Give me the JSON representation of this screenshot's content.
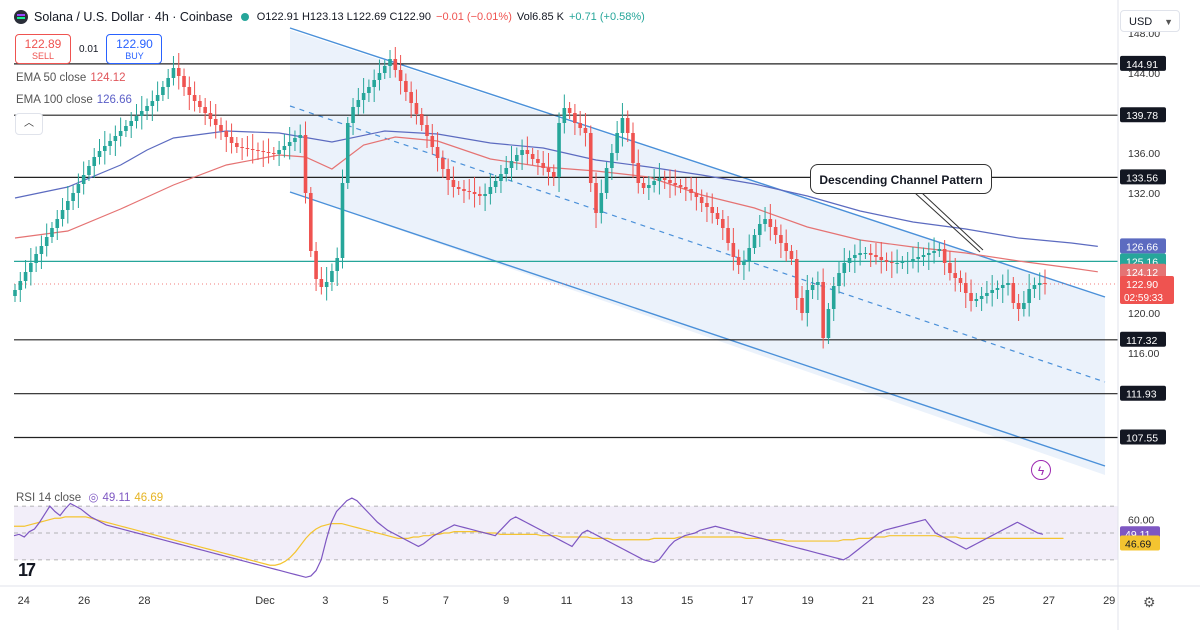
{
  "header": {
    "symbol": "Solana / U.S. Dollar · 4h · Coinbase",
    "ohlc": "O122.91 H123.13 L122.69 C122.90",
    "change": "−0.01 (−0.01%)",
    "volume": "Vol6.85 K",
    "vol_change": "+0.71 (+0.58%)"
  },
  "trade": {
    "sell_price": "122.89",
    "sell_label": "SELL",
    "spread": "0.01",
    "buy_price": "122.90",
    "buy_label": "BUY"
  },
  "indicators": {
    "ema50_label": "EMA 50 close",
    "ema50_value": "124.12",
    "ema100_label": "EMA 100 close",
    "ema100_value": "126.66",
    "rsi_label": "RSI 14 close",
    "rsi_value": "49.11",
    "rsi_ma_value": "46.69"
  },
  "currency": "USD",
  "annotation": "Descending Channel Pattern",
  "icons": [
    "solana-logo-icon",
    "status-dot-icon",
    "chevron-up-icon",
    "chevron-down-icon",
    "flash-icon",
    "tradingview-logo-icon",
    "gear-icon"
  ],
  "colors": {
    "up": "#26a69a",
    "down": "#ef5350",
    "ema50": "#e57373",
    "ema100": "#5c6bc0",
    "channel": "#4a90d9",
    "rsi": "#7e57c2",
    "rsi_ma": "#f4c430",
    "support_green": "#26a69a"
  },
  "chart_data": {
    "type": "candlestick",
    "title": "Solana / U.S. Dollar · 4h · Coinbase",
    "price_axis": {
      "ticks": [
        "148.00",
        "144.00",
        "136.00",
        "132.00",
        "120.00",
        "116.00"
      ],
      "range": [
        103.5,
        150.5
      ]
    },
    "x_ticks": [
      "24",
      "26",
      "28",
      "Dec",
      "3",
      "5",
      "7",
      "9",
      "11",
      "13",
      "15",
      "17",
      "19",
      "21",
      "23",
      "25",
      "27",
      "29"
    ],
    "horizontal_levels": [
      {
        "value": 144.91,
        "label": "144.91",
        "style": "black"
      },
      {
        "value": 139.78,
        "label": "139.78",
        "style": "black"
      },
      {
        "value": 133.56,
        "label": "133.56",
        "style": "black"
      },
      {
        "value": 125.16,
        "label": "125.16",
        "style": "green"
      },
      {
        "value": 117.32,
        "label": "117.32",
        "style": "black"
      },
      {
        "value": 111.93,
        "label": "111.93",
        "style": "black"
      },
      {
        "value": 107.55,
        "label": "107.55",
        "style": "black"
      }
    ],
    "price_tags": [
      {
        "value": 126.66,
        "label": "126.66",
        "series": "EMA 100 close"
      },
      {
        "value": 124.12,
        "label": "124.12",
        "series": "EMA 50 close"
      },
      {
        "value": 122.9,
        "label": "122.90",
        "extra": "02:59:33"
      }
    ],
    "channel": {
      "start_date": "Dec 1",
      "upper": [
        [
          2.0,
          150.0
        ],
        [
          29.5,
          124.0
        ]
      ],
      "middle": [
        [
          2.0,
          143.0
        ],
        [
          29.5,
          115.0
        ]
      ],
      "lower": [
        [
          2.0,
          134.0
        ],
        [
          29.5,
          106.0
        ]
      ]
    },
    "candles_close": [
      122.3,
      123.2,
      124.1,
      125.0,
      125.9,
      126.7,
      127.6,
      128.5,
      129.4,
      130.3,
      131.2,
      132.0,
      132.9,
      133.8,
      134.7,
      135.6,
      136.2,
      136.7,
      137.2,
      137.7,
      138.2,
      138.7,
      139.2,
      139.7,
      140.2,
      140.7,
      141.2,
      141.8,
      142.6,
      143.5,
      144.5,
      143.7,
      142.6,
      141.8,
      141.2,
      140.6,
      140.0,
      139.4,
      138.8,
      138.2,
      137.6,
      137.0,
      136.6,
      136.5,
      136.4,
      136.3,
      136.2,
      136.1,
      136.0,
      135.9,
      136.3,
      136.7,
      137.1,
      137.5,
      137.8,
      132.0,
      126.2,
      123.4,
      122.6,
      123.1,
      124.2,
      125.5,
      133.0,
      139.0,
      140.6,
      141.3,
      142.0,
      142.6,
      143.3,
      144.0,
      144.7,
      145.4,
      144.3,
      143.2,
      142.1,
      141.0,
      139.9,
      138.8,
      137.7,
      136.6,
      135.5,
      134.4,
      133.3,
      132.6,
      132.4,
      132.2,
      132.1,
      131.9,
      131.7,
      131.9,
      132.6,
      133.2,
      133.9,
      134.5,
      135.2,
      135.8,
      136.3,
      135.9,
      135.4,
      135.0,
      134.5,
      134.1,
      133.6,
      139.0,
      140.5,
      140.0,
      139.0,
      138.5,
      138.0,
      133.0,
      130.0,
      132.0,
      134.5,
      136.0,
      138.0,
      139.5,
      138.0,
      135.0,
      133.0,
      132.5,
      132.8,
      133.2,
      133.5,
      133.3,
      133.0,
      132.8,
      132.6,
      132.4,
      132.0,
      131.6,
      131.0,
      130.6,
      130.0,
      129.4,
      128.5,
      127.0,
      125.6,
      124.8,
      125.2,
      126.5,
      127.8,
      128.9,
      129.4,
      128.6,
      127.8,
      127.0,
      126.2,
      125.4,
      121.5,
      120.0,
      122.3,
      122.8,
      123.1,
      117.5,
      120.4,
      122.7,
      124.0,
      125.0,
      125.5,
      125.8,
      126.0,
      126.0,
      125.8,
      125.6,
      125.3,
      125.1,
      125.0,
      125.0,
      125.1,
      125.2,
      125.4,
      125.6,
      125.8,
      126.0,
      126.2,
      126.4,
      125.0,
      124.0,
      123.5,
      123.0,
      122.0,
      121.2,
      121.4,
      121.7,
      122.0,
      122.3,
      122.5,
      122.8,
      123.0,
      121.0,
      120.4,
      121.0,
      122.4,
      122.8,
      123.0,
      122.9
    ],
    "ema50": [
      [
        0,
        127.5
      ],
      [
        10,
        128.2
      ],
      [
        20,
        130.4
      ],
      [
        30,
        132.8
      ],
      [
        40,
        134.8
      ],
      [
        50,
        135.8
      ],
      [
        55,
        135.6
      ],
      [
        60,
        134.4
      ],
      [
        66,
        136.8
      ],
      [
        72,
        137.6
      ],
      [
        80,
        137.2
      ],
      [
        90,
        135.4
      ],
      [
        100,
        134.6
      ],
      [
        110,
        134.2
      ],
      [
        120,
        133.6
      ],
      [
        130,
        131.8
      ],
      [
        140,
        130.5
      ],
      [
        150,
        128.6
      ],
      [
        160,
        127.3
      ],
      [
        170,
        126.6
      ],
      [
        180,
        126.0
      ],
      [
        190,
        125.2
      ],
      [
        200,
        124.5
      ],
      [
        205,
        124.12
      ]
    ],
    "ema100": [
      [
        0,
        131.5
      ],
      [
        10,
        132.6
      ],
      [
        20,
        134.8
      ],
      [
        25,
        136.3
      ],
      [
        30,
        137.5
      ],
      [
        40,
        138.2
      ],
      [
        50,
        138.0
      ],
      [
        60,
        137.1
      ],
      [
        70,
        138.2
      ],
      [
        80,
        137.9
      ],
      [
        90,
        137.0
      ],
      [
        100,
        136.5
      ],
      [
        110,
        135.3
      ],
      [
        120,
        134.6
      ],
      [
        130,
        133.8
      ],
      [
        140,
        132.9
      ],
      [
        150,
        131.7
      ],
      [
        160,
        130.2
      ],
      [
        170,
        129.1
      ],
      [
        180,
        128.4
      ],
      [
        190,
        127.5
      ],
      [
        200,
        127.0
      ],
      [
        205,
        126.66
      ]
    ],
    "rsi": {
      "ticks": [
        "60.00"
      ],
      "range": [
        15,
        85
      ],
      "last": 49.11,
      "ma_last": 46.69,
      "series": [
        48,
        49,
        47,
        51,
        53,
        58,
        64,
        70,
        66,
        63,
        68,
        72,
        70,
        68,
        65,
        62,
        60,
        58,
        56,
        55,
        54,
        53,
        52,
        51,
        50,
        49,
        48,
        47,
        46,
        45,
        44,
        43,
        42,
        41,
        40,
        39,
        38,
        37,
        36,
        35,
        34,
        33,
        32,
        31,
        30,
        29,
        28,
        27,
        26,
        25,
        24,
        23,
        22,
        21,
        20,
        19,
        18,
        17,
        18,
        22,
        30,
        45,
        58,
        66,
        70,
        74,
        76,
        74,
        70,
        66,
        62,
        58,
        55,
        52,
        50,
        48,
        46,
        44,
        42,
        40,
        42,
        45,
        48,
        50,
        52,
        54,
        56,
        55,
        54,
        53,
        52,
        51,
        50,
        49,
        48,
        52,
        56,
        60,
        62,
        60,
        58,
        56,
        54,
        52,
        50,
        48,
        46,
        44,
        42,
        40,
        45,
        50,
        52,
        50,
        48,
        46,
        44,
        42,
        40,
        38,
        36,
        34,
        32,
        30,
        29,
        28,
        30,
        35,
        40,
        44,
        46,
        48,
        49,
        50,
        52,
        53,
        54,
        55,
        54,
        53,
        52,
        51,
        50,
        49,
        48,
        47,
        46,
        45,
        44,
        43,
        42,
        41,
        40,
        39,
        38,
        37,
        36,
        35,
        34,
        33,
        32,
        31,
        30,
        32,
        35,
        38,
        41,
        44,
        47,
        50,
        52,
        53,
        54,
        55,
        56,
        57,
        58,
        59,
        60,
        55,
        50,
        48,
        46,
        44,
        42,
        40,
        38,
        40,
        42,
        44,
        46,
        48,
        50,
        52,
        54,
        56,
        58,
        56,
        54,
        52,
        50,
        49
      ],
      "ma": [
        55,
        55,
        55,
        56,
        57,
        58,
        59,
        60,
        61,
        61,
        62,
        62,
        62,
        62,
        62,
        61,
        60,
        59,
        58,
        57,
        56,
        55,
        54,
        53,
        52,
        51,
        50,
        49,
        48,
        47,
        46,
        45,
        44,
        43,
        42,
        41,
        40,
        39,
        38,
        37,
        36,
        35,
        34,
        33,
        32,
        31,
        30,
        29,
        28,
        27,
        26,
        26,
        27,
        29,
        32,
        36,
        41,
        46,
        50,
        53,
        55,
        56,
        57,
        57,
        57,
        56,
        55,
        54,
        53,
        52,
        51,
        50,
        49,
        48,
        47,
        46,
        46,
        46,
        47,
        47,
        48,
        48,
        49,
        49,
        50,
        50,
        51,
        51,
        51,
        51,
        51,
        51,
        50,
        50,
        50,
        49,
        49,
        49,
        49,
        49,
        49,
        49,
        49,
        48,
        48,
        48,
        48,
        47,
        47,
        47,
        47,
        47,
        47,
        46,
        46,
        46,
        46,
        45,
        45,
        45,
        45,
        45,
        45,
        45,
        45,
        46,
        46,
        46,
        46,
        46,
        47,
        47,
        47,
        47,
        47,
        47,
        47,
        47,
        47,
        47,
        47,
        47,
        47,
        46,
        46,
        46,
        46,
        45,
        45,
        45,
        45,
        44,
        44,
        44,
        44,
        44,
        44,
        44,
        44,
        44,
        44,
        44,
        45,
        45,
        45,
        46,
        46,
        46,
        47,
        47,
        47,
        48,
        48,
        48,
        48,
        48,
        48,
        48,
        48,
        48,
        48,
        47,
        47,
        47,
        47,
        46,
        46,
        46,
        46,
        46,
        46,
        46,
        46,
        46,
        46,
        46,
        46,
        46,
        46,
        46,
        46,
        46,
        46,
        46,
        46,
        46
      ]
    }
  }
}
